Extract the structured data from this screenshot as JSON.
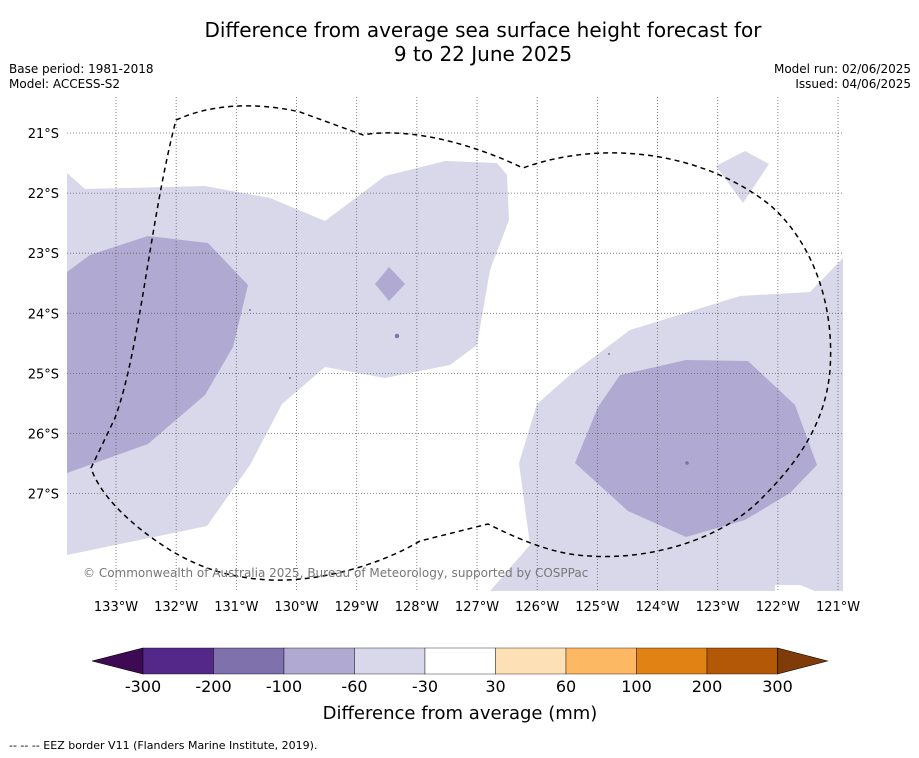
{
  "title_line1": "Difference from average sea surface height forecast for",
  "title_line2": "9 to 22 June 2025",
  "base_period": "Base period: 1981-2018",
  "model": "Model: ACCESS-S2",
  "model_run": "Model run: 02/06/2025",
  "issued": "Issued: 04/06/2025",
  "copyright": "© Commonwealth of Australia 2025, Bureau of Meteorology, supported by COSPPac",
  "lon_ticks": [
    "133°W",
    "132°W",
    "131°W",
    "130°W",
    "129°W",
    "128°W",
    "127°W",
    "126°W",
    "125°W",
    "124°W",
    "123°W",
    "122°W",
    "121°W"
  ],
  "lat_ticks": [
    "21°S",
    "22°S",
    "23°S",
    "24°S",
    "25°S",
    "26°S",
    "27°S"
  ],
  "colorbar": {
    "title": "Difference from average (mm)",
    "tick_labels": [
      "-300",
      "-200",
      "-100",
      "-60",
      "-30",
      "30",
      "60",
      "100",
      "200",
      "300"
    ],
    "colors": [
      "#3f0a54",
      "#542888",
      "#7e71ac",
      "#b0a9d1",
      "#d8d8ea",
      "#ffffff",
      "#fee0b6",
      "#fdb863",
      "#e08214",
      "#b35806",
      "#7f3b08"
    ]
  },
  "footer": "--  --  -- EEZ border V11 (Flanders Marine Institute, 2019)."
}
